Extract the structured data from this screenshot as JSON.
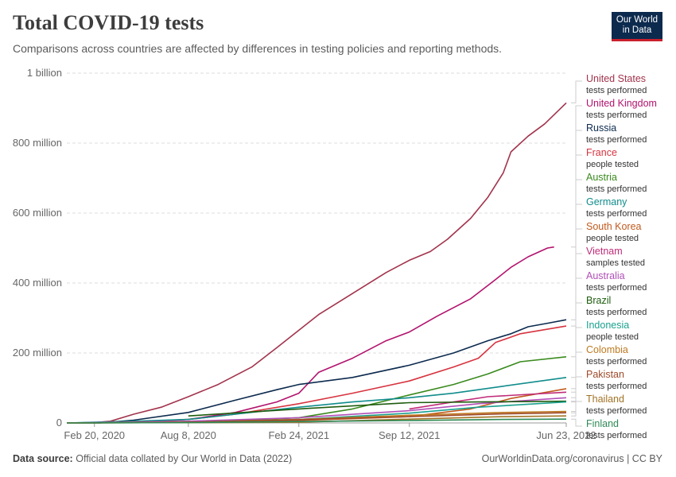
{
  "header": {
    "title": "Total COVID-19 tests",
    "subtitle": "Comparisons across countries are affected by differences in testing policies and reporting methods.",
    "logo_line1": "Our World",
    "logo_line2": "in Data"
  },
  "footer": {
    "source_label": "Data source:",
    "source_text": "Official data collated by Our World in Data (2022)",
    "right_text": "OurWorldinData.org/coronavirus | CC BY"
  },
  "chart_data": {
    "type": "line",
    "title": "Total COVID-19 tests",
    "subtitle": "Comparisons across countries are affected by differences in testing policies and reporting methods.",
    "xlabel": "",
    "ylabel": "",
    "x_range": [
      "2020-01-01",
      "2022-06-23"
    ],
    "ylim": [
      0,
      1000000000
    ],
    "y_ticks": [
      0,
      200000000,
      400000000,
      600000000,
      800000000,
      1000000000
    ],
    "y_tick_labels": [
      "0",
      "200 million",
      "400 million",
      "600 million",
      "800 million",
      "1 billion"
    ],
    "x_ticks": [
      "2020-02-20",
      "2020-08-08",
      "2021-02-24",
      "2021-09-12",
      "2022-06-23"
    ],
    "x_tick_labels": [
      "Feb 20, 2020",
      "Aug 8, 2020",
      "Feb 24, 2021",
      "Sep 12, 2021",
      "Jun 23, 2022"
    ],
    "grid": "horizontal-dashed",
    "legend_placement": "right",
    "series": [
      {
        "name": "United States",
        "metric": "tests performed",
        "color": "#a2334c",
        "points": [
          [
            "2020-01-01",
            0
          ],
          [
            "2020-02-20",
            1000000
          ],
          [
            "2020-03-20",
            5000000
          ],
          [
            "2020-05-01",
            25000000
          ],
          [
            "2020-06-20",
            45000000
          ],
          [
            "2020-08-08",
            75000000
          ],
          [
            "2020-10-01",
            110000000
          ],
          [
            "2020-12-01",
            160000000
          ],
          [
            "2021-01-15",
            215000000
          ],
          [
            "2021-02-24",
            265000000
          ],
          [
            "2021-04-01",
            310000000
          ],
          [
            "2021-06-01",
            370000000
          ],
          [
            "2021-08-01",
            430000000
          ],
          [
            "2021-09-12",
            465000000
          ],
          [
            "2021-10-20",
            490000000
          ],
          [
            "2021-11-20",
            525000000
          ],
          [
            "2022-01-01",
            585000000
          ],
          [
            "2022-02-01",
            645000000
          ],
          [
            "2022-03-01",
            715000000
          ],
          [
            "2022-03-15",
            775000000
          ],
          [
            "2022-04-15",
            820000000
          ],
          [
            "2022-05-15",
            855000000
          ],
          [
            "2022-06-23",
            915000000
          ]
        ]
      },
      {
        "name": "United Kingdom",
        "metric": "tests performed",
        "color": "#b2136e",
        "points": [
          [
            "2020-01-01",
            0
          ],
          [
            "2020-04-01",
            1000000
          ],
          [
            "2020-08-08",
            10000000
          ],
          [
            "2020-11-01",
            30000000
          ],
          [
            "2021-01-15",
            60000000
          ],
          [
            "2021-02-24",
            85000000
          ],
          [
            "2021-04-01",
            145000000
          ],
          [
            "2021-06-01",
            185000000
          ],
          [
            "2021-08-01",
            235000000
          ],
          [
            "2021-09-12",
            260000000
          ],
          [
            "2021-11-01",
            305000000
          ],
          [
            "2022-01-01",
            355000000
          ],
          [
            "2022-02-15",
            410000000
          ],
          [
            "2022-03-15",
            445000000
          ],
          [
            "2022-04-15",
            475000000
          ],
          [
            "2022-05-20",
            500000000
          ],
          [
            "2022-06-01",
            503000000
          ]
        ]
      },
      {
        "name": "Russia",
        "metric": "tests performed",
        "color": "#0c2a4e",
        "points": [
          [
            "2020-01-01",
            0
          ],
          [
            "2020-03-01",
            200000
          ],
          [
            "2020-05-01",
            8000000
          ],
          [
            "2020-08-08",
            30000000
          ],
          [
            "2020-11-01",
            65000000
          ],
          [
            "2021-01-15",
            95000000
          ],
          [
            "2021-02-24",
            110000000
          ],
          [
            "2021-06-01",
            130000000
          ],
          [
            "2021-09-12",
            165000000
          ],
          [
            "2021-12-01",
            200000000
          ],
          [
            "2022-02-01",
            235000000
          ],
          [
            "2022-03-15",
            255000000
          ],
          [
            "2022-04-15",
            275000000
          ],
          [
            "2022-05-20",
            285000000
          ],
          [
            "2022-06-23",
            295000000
          ]
        ]
      },
      {
        "name": "France",
        "metric": "people tested",
        "color": "#d7333f",
        "points": [
          [
            "2020-01-01",
            0
          ],
          [
            "2020-05-01",
            1000000
          ],
          [
            "2020-08-08",
            10000000
          ],
          [
            "2020-11-01",
            25000000
          ],
          [
            "2021-02-24",
            55000000
          ],
          [
            "2021-06-01",
            85000000
          ],
          [
            "2021-09-12",
            120000000
          ],
          [
            "2021-12-01",
            160000000
          ],
          [
            "2022-01-15",
            185000000
          ],
          [
            "2022-02-15",
            230000000
          ],
          [
            "2022-04-01",
            255000000
          ],
          [
            "2022-06-23",
            277000000
          ]
        ]
      },
      {
        "name": "Austria",
        "metric": "tests performed",
        "color": "#3a8a1e",
        "points": [
          [
            "2020-01-01",
            0
          ],
          [
            "2020-08-08",
            1000000
          ],
          [
            "2021-02-24",
            15000000
          ],
          [
            "2021-06-01",
            40000000
          ],
          [
            "2021-09-12",
            80000000
          ],
          [
            "2021-12-01",
            110000000
          ],
          [
            "2022-02-01",
            140000000
          ],
          [
            "2022-04-01",
            175000000
          ],
          [
            "2022-06-23",
            189000000
          ]
        ]
      },
      {
        "name": "Germany",
        "metric": "tests performed",
        "color": "#118c8c",
        "points": [
          [
            "2020-01-01",
            0
          ],
          [
            "2020-05-01",
            5000000
          ],
          [
            "2020-08-08",
            10000000
          ],
          [
            "2020-11-01",
            25000000
          ],
          [
            "2021-02-24",
            45000000
          ],
          [
            "2021-06-01",
            60000000
          ],
          [
            "2021-09-12",
            72000000
          ],
          [
            "2021-12-01",
            85000000
          ],
          [
            "2022-03-01",
            105000000
          ],
          [
            "2022-06-23",
            130000000
          ]
        ]
      },
      {
        "name": "South Korea",
        "metric": "people tested",
        "color": "#c15a1e",
        "points": [
          [
            "2020-01-01",
            0
          ],
          [
            "2020-08-08",
            2000000
          ],
          [
            "2021-02-24",
            7000000
          ],
          [
            "2021-09-12",
            18000000
          ],
          [
            "2022-01-01",
            40000000
          ],
          [
            "2022-03-15",
            70000000
          ],
          [
            "2022-06-23",
            98000000
          ]
        ]
      },
      {
        "name": "Vietnam",
        "metric": "samples tested",
        "color": "#c02b78",
        "points": [
          [
            "2021-09-12",
            40000000
          ],
          [
            "2021-12-01",
            60000000
          ],
          [
            "2022-02-01",
            75000000
          ],
          [
            "2022-06-23",
            88000000
          ]
        ]
      },
      {
        "name": "Australia",
        "metric": "tests performed",
        "color": "#b14fb7",
        "points": [
          [
            "2020-01-01",
            0
          ],
          [
            "2020-08-08",
            5000000
          ],
          [
            "2021-02-24",
            15000000
          ],
          [
            "2021-09-12",
            35000000
          ],
          [
            "2022-01-15",
            55000000
          ],
          [
            "2022-06-23",
            72000000
          ]
        ]
      },
      {
        "name": "Brazil",
        "metric": "tests performed",
        "color": "#1e5c0e",
        "points": [
          [
            "2020-08-08",
            20000000
          ],
          [
            "2021-02-24",
            40000000
          ],
          [
            "2021-09-12",
            58000000
          ],
          [
            "2022-01-15",
            60000000
          ],
          [
            "2022-06-23",
            62000000
          ]
        ]
      },
      {
        "name": "Indonesia",
        "metric": "people tested",
        "color": "#1aa08f",
        "points": [
          [
            "2020-01-01",
            0
          ],
          [
            "2020-08-08",
            2000000
          ],
          [
            "2021-02-24",
            10000000
          ],
          [
            "2021-09-12",
            28000000
          ],
          [
            "2022-01-15",
            45000000
          ],
          [
            "2022-06-23",
            60000000
          ]
        ]
      },
      {
        "name": "Colombia",
        "metric": "tests performed",
        "color": "#bf7a20",
        "points": [
          [
            "2020-01-01",
            0
          ],
          [
            "2020-08-08",
            2000000
          ],
          [
            "2021-02-24",
            10000000
          ],
          [
            "2021-09-12",
            22000000
          ],
          [
            "2022-03-01",
            30000000
          ],
          [
            "2022-06-23",
            33000000
          ]
        ]
      },
      {
        "name": "Pakistan",
        "metric": "tests performed",
        "color": "#9e4a2a",
        "points": [
          [
            "2020-01-01",
            0
          ],
          [
            "2020-08-08",
            2000000
          ],
          [
            "2021-02-24",
            9000000
          ],
          [
            "2021-09-12",
            18000000
          ],
          [
            "2022-03-01",
            26000000
          ],
          [
            "2022-06-23",
            29000000
          ]
        ]
      },
      {
        "name": "Thailand",
        "metric": "tests performed",
        "color": "#a27326",
        "points": [
          [
            "2020-01-01",
            0
          ],
          [
            "2020-08-08",
            800000
          ],
          [
            "2021-02-24",
            2000000
          ],
          [
            "2021-09-12",
            11000000
          ],
          [
            "2022-03-01",
            18000000
          ],
          [
            "2022-06-23",
            20000000
          ]
        ]
      },
      {
        "name": "Finland",
        "metric": "tests performed",
        "color": "#2f8a57",
        "points": [
          [
            "2020-01-01",
            0
          ],
          [
            "2020-08-08",
            1000000
          ],
          [
            "2021-02-24",
            4000000
          ],
          [
            "2021-09-12",
            7000000
          ],
          [
            "2022-03-01",
            10000000
          ],
          [
            "2022-06-23",
            11000000
          ]
        ]
      }
    ]
  }
}
